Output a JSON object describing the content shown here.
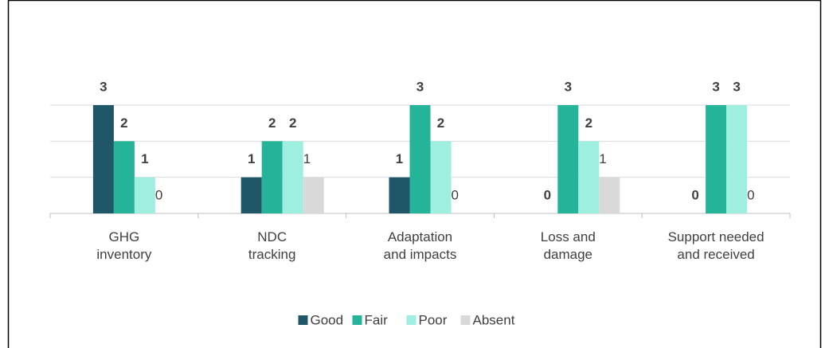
{
  "chart_data": {
    "type": "bar",
    "categories": [
      "GHG\ninventory",
      "NDC\ntracking",
      "Adaptation\nand impacts",
      "Loss and\ndamage",
      "Support needed\nand received"
    ],
    "series": [
      {
        "name": "Good",
        "color": "#1f5768",
        "values": [
          3,
          1,
          1,
          0,
          0
        ]
      },
      {
        "name": "Fair",
        "color": "#25b39a",
        "values": [
          2,
          2,
          3,
          3,
          3
        ]
      },
      {
        "name": "Poor",
        "color": "#9fefe0",
        "values": [
          1,
          2,
          2,
          2,
          3
        ]
      },
      {
        "name": "Absent",
        "color": "#d9d9d9",
        "values": [
          0,
          1,
          0,
          1,
          0
        ]
      }
    ],
    "ylim": [
      0,
      3
    ],
    "yticks": [
      0,
      1,
      2,
      3
    ],
    "grid": true,
    "legend": "bottom"
  }
}
